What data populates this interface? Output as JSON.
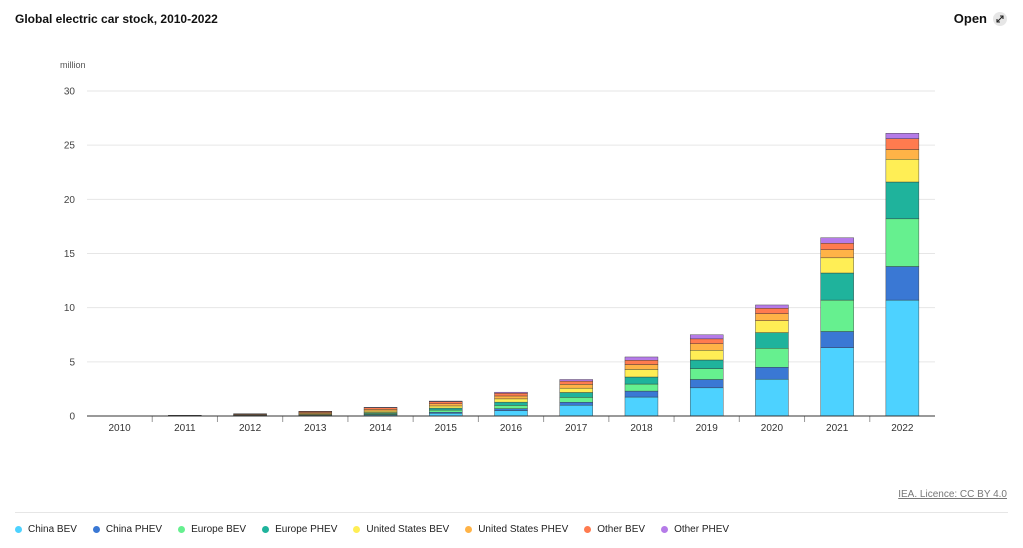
{
  "header": {
    "title": "Global electric car stock, 2010-2022",
    "open_label": "Open"
  },
  "footer": {
    "licence": "IEA. Licence: CC BY 4.0"
  },
  "colors": {
    "China BEV": "#4dd2ff",
    "China PHEV": "#3a78d4",
    "Europe BEV": "#66f08f",
    "Europe PHEV": "#1fb39c",
    "United States BEV": "#ffee55",
    "United States PHEV": "#ffb347",
    "Other BEV": "#ff7b4f",
    "Other PHEV": "#b57be8"
  },
  "chart_data": {
    "type": "bar",
    "stacked": true,
    "ylabel": "million",
    "ylim": [
      0,
      30
    ],
    "yticks": [
      0,
      5,
      10,
      15,
      20,
      25,
      30
    ],
    "grid": true,
    "legend_position": "bottom",
    "categories": [
      "2010",
      "2011",
      "2012",
      "2013",
      "2014",
      "2015",
      "2016",
      "2017",
      "2018",
      "2019",
      "2020",
      "2021",
      "2022"
    ],
    "series": [
      {
        "name": "China BEV",
        "values": [
          0.01,
          0.02,
          0.03,
          0.05,
          0.1,
          0.25,
          0.5,
          1.0,
          1.75,
          2.6,
          3.4,
          6.3,
          10.7
        ]
      },
      {
        "name": "China PHEV",
        "values": [
          0,
          0,
          0.01,
          0.01,
          0.04,
          0.1,
          0.18,
          0.27,
          0.55,
          0.77,
          1.1,
          1.5,
          3.1
        ]
      },
      {
        "name": "Europe BEV",
        "values": [
          0,
          0.01,
          0.02,
          0.05,
          0.1,
          0.2,
          0.3,
          0.45,
          0.65,
          1.0,
          1.75,
          2.9,
          4.4
        ]
      },
      {
        "name": "Europe PHEV",
        "values": [
          0,
          0,
          0.01,
          0.03,
          0.08,
          0.18,
          0.3,
          0.45,
          0.65,
          0.8,
          1.45,
          2.5,
          3.4
        ]
      },
      {
        "name": "United States BEV",
        "values": [
          0,
          0.01,
          0.03,
          0.08,
          0.14,
          0.2,
          0.3,
          0.4,
          0.7,
          0.9,
          1.1,
          1.4,
          2.1
        ]
      },
      {
        "name": "United States PHEV",
        "values": [
          0,
          0.01,
          0.05,
          0.1,
          0.15,
          0.2,
          0.27,
          0.35,
          0.45,
          0.6,
          0.65,
          0.75,
          0.9
        ]
      },
      {
        "name": "Other BEV",
        "values": [
          0.01,
          0.02,
          0.05,
          0.1,
          0.15,
          0.2,
          0.25,
          0.3,
          0.4,
          0.45,
          0.5,
          0.6,
          1.0
        ]
      },
      {
        "name": "Other PHEV",
        "values": [
          0,
          0,
          0.01,
          0.02,
          0.04,
          0.05,
          0.1,
          0.15,
          0.3,
          0.38,
          0.3,
          0.5,
          0.5
        ]
      }
    ]
  }
}
